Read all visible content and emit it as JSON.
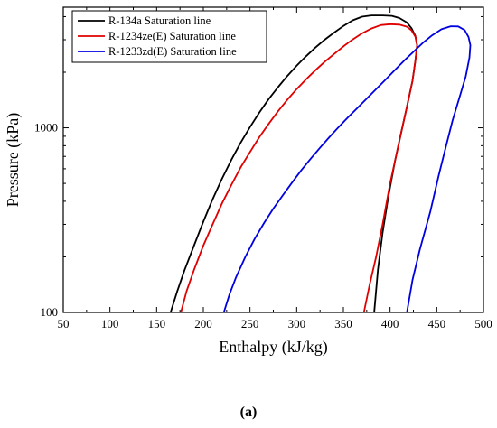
{
  "chart_data": {
    "type": "line",
    "title": "",
    "xlabel": "Enthalpy (kJ/kg)",
    "ylabel": "Pressure (kPa)",
    "xlim": [
      50,
      500
    ],
    "ylim": [
      100,
      4500
    ],
    "yscale": "log",
    "xticks": [
      "50",
      "100",
      "150",
      "200",
      "250",
      "300",
      "350",
      "400",
      "450",
      "500"
    ],
    "yticks": [
      "100",
      "1000"
    ],
    "grid": false,
    "legend_position": "top-left",
    "series": [
      {
        "name": "R-134a Saturation line",
        "color": "#000000",
        "points": [
          [
            165,
            100
          ],
          [
            172,
            130
          ],
          [
            180,
            170
          ],
          [
            190,
            230
          ],
          [
            200,
            310
          ],
          [
            210,
            410
          ],
          [
            220,
            530
          ],
          [
            230,
            670
          ],
          [
            240,
            830
          ],
          [
            250,
            1010
          ],
          [
            260,
            1210
          ],
          [
            270,
            1430
          ],
          [
            280,
            1660
          ],
          [
            290,
            1910
          ],
          [
            300,
            2170
          ],
          [
            310,
            2440
          ],
          [
            320,
            2720
          ],
          [
            330,
            3000
          ],
          [
            340,
            3280
          ],
          [
            350,
            3560
          ],
          [
            360,
            3820
          ],
          [
            370,
            4000
          ],
          [
            380,
            4060
          ],
          [
            392,
            4060
          ],
          [
            402,
            4040
          ],
          [
            410,
            3930
          ],
          [
            418,
            3720
          ],
          [
            423,
            3460
          ],
          [
            427,
            3150
          ],
          [
            429,
            2800
          ],
          [
            427,
            2300
          ],
          [
            424,
            1800
          ],
          [
            418,
            1300
          ],
          [
            412,
            950
          ],
          [
            405,
            650
          ],
          [
            398,
            420
          ],
          [
            392,
            270
          ],
          [
            387,
            170
          ],
          [
            383,
            100
          ]
        ]
      },
      {
        "name": "R-1234ze(E) Saturation line",
        "color": "#e00000",
        "points": [
          [
            176,
            100
          ],
          [
            182,
            130
          ],
          [
            190,
            170
          ],
          [
            200,
            230
          ],
          [
            210,
            300
          ],
          [
            220,
            390
          ],
          [
            230,
            490
          ],
          [
            240,
            610
          ],
          [
            250,
            740
          ],
          [
            260,
            890
          ],
          [
            270,
            1050
          ],
          [
            280,
            1230
          ],
          [
            290,
            1420
          ],
          [
            300,
            1620
          ],
          [
            310,
            1830
          ],
          [
            320,
            2050
          ],
          [
            330,
            2280
          ],
          [
            340,
            2510
          ],
          [
            350,
            2760
          ],
          [
            360,
            3010
          ],
          [
            370,
            3250
          ],
          [
            380,
            3450
          ],
          [
            390,
            3600
          ],
          [
            400,
            3640
          ],
          [
            410,
            3620
          ],
          [
            418,
            3530
          ],
          [
            423,
            3370
          ],
          [
            427,
            3120
          ],
          [
            429,
            2800
          ],
          [
            427,
            2300
          ],
          [
            424,
            1800
          ],
          [
            418,
            1300
          ],
          [
            410,
            850
          ],
          [
            400,
            500
          ],
          [
            392,
            300
          ],
          [
            385,
            200
          ],
          [
            378,
            140
          ],
          [
            372,
            100
          ]
        ]
      },
      {
        "name": "R-1233zd(E) Saturation line",
        "color": "#0000e0",
        "points": [
          [
            222,
            100
          ],
          [
            228,
            125
          ],
          [
            235,
            155
          ],
          [
            245,
            200
          ],
          [
            255,
            250
          ],
          [
            265,
            305
          ],
          [
            275,
            365
          ],
          [
            285,
            430
          ],
          [
            295,
            505
          ],
          [
            305,
            590
          ],
          [
            315,
            680
          ],
          [
            325,
            780
          ],
          [
            335,
            890
          ],
          [
            345,
            1010
          ],
          [
            355,
            1140
          ],
          [
            365,
            1280
          ],
          [
            375,
            1440
          ],
          [
            385,
            1620
          ],
          [
            395,
            1820
          ],
          [
            405,
            2050
          ],
          [
            415,
            2310
          ],
          [
            425,
            2580
          ],
          [
            435,
            2880
          ],
          [
            445,
            3170
          ],
          [
            455,
            3420
          ],
          [
            465,
            3550
          ],
          [
            473,
            3540
          ],
          [
            480,
            3380
          ],
          [
            484,
            3100
          ],
          [
            486,
            2800
          ],
          [
            485,
            2400
          ],
          [
            481,
            1900
          ],
          [
            475,
            1500
          ],
          [
            467,
            1100
          ],
          [
            460,
            800
          ],
          [
            452,
            550
          ],
          [
            443,
            350
          ],
          [
            432,
            220
          ],
          [
            424,
            150
          ],
          [
            418,
            100
          ]
        ]
      }
    ]
  },
  "caption": "(a)"
}
